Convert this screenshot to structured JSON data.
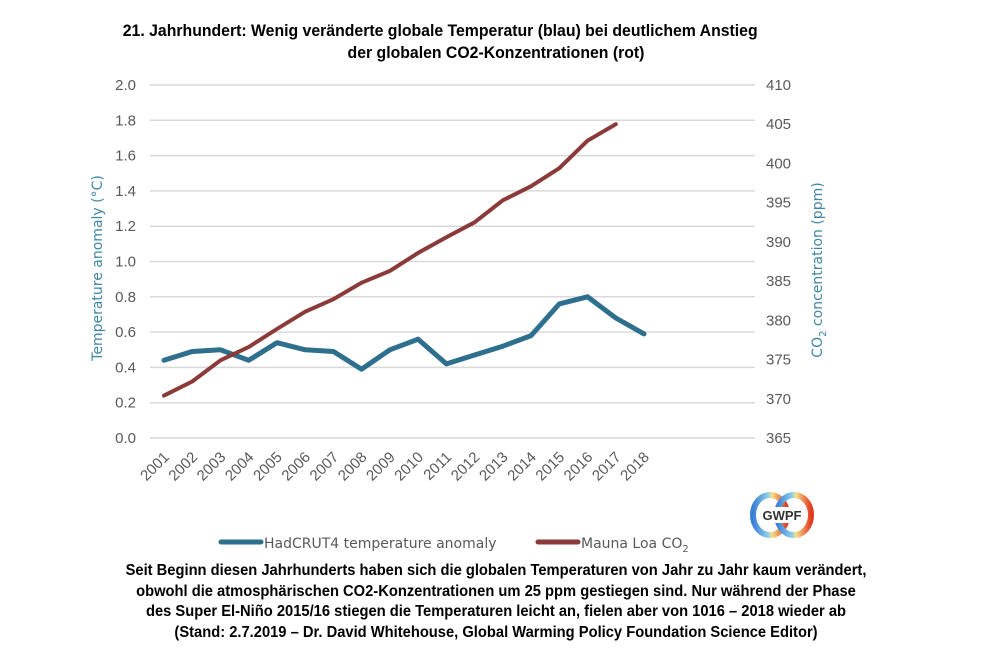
{
  "title": {
    "line1": "21. Jahrhundert:  Wenig veränderte globale Temperatur (blau) bei deutlichem Anstieg",
    "line2": "der globalen CO2-Konzentrationen  (rot)"
  },
  "caption": {
    "lines": [
      "Seit Beginn diesen Jahrhunderts  haben sich die globalen Temperaturen von Jahr zu Jahr kaum verändert,",
      "obwohl die atmosphärischen  CO2-Konzentrationen  um 25 ppm gestiegen sind. Nur während der Phase",
      "des Super El-Niño 2015/16 stiegen die Temperaturen leicht an, fielen aber  von 1016 – 2018 wieder ab",
      "(Stand: 2.7.2019 – Dr. David Whitehouse, Global Warming Policy Foundation Science Editor)"
    ]
  },
  "logo": {
    "text": "GWPF",
    "icon": "gwpf-logo-icon"
  },
  "chart_data": {
    "type": "line",
    "title": "21. Jahrhundert: Wenig veränderte globale Temperatur (blau) bei deutlichem Anstieg der globalen CO2-Konzentrationen (rot)",
    "xlabel": "",
    "ylabel": "Temperature anomaly (°C)",
    "y2label": "CO₂ concentration (ppm)",
    "ylim": [
      0.0,
      2.0
    ],
    "y2lim": [
      365,
      410
    ],
    "yticks": [
      "0.0",
      "0.2",
      "0.4",
      "0.6",
      "0.8",
      "1.0",
      "1.2",
      "1.4",
      "1.6",
      "1.8",
      "2.0"
    ],
    "y2ticks": [
      "365",
      "370",
      "375",
      "380",
      "385",
      "390",
      "395",
      "400",
      "405",
      "410"
    ],
    "categories": [
      "2001",
      "2002",
      "2003",
      "2004",
      "2005",
      "2006",
      "2007",
      "2008",
      "2009",
      "2010",
      "2011",
      "2012",
      "2013",
      "2014",
      "2015",
      "2016",
      "2017",
      "2018"
    ],
    "grid": true,
    "legend_position": "bottom",
    "series": [
      {
        "name": "HadCRUT4 temperature anomaly",
        "axis": "left",
        "color": "#2e6f8e",
        "values": [
          0.44,
          0.49,
          0.5,
          0.44,
          0.54,
          0.5,
          0.49,
          0.39,
          0.5,
          0.56,
          0.42,
          0.47,
          0.52,
          0.58,
          0.76,
          0.8,
          0.68,
          0.59
        ]
      },
      {
        "name": "Mauna Loa CO₂",
        "axis": "right",
        "color": "#8b3a3a",
        "values": [
          370.4,
          372.2,
          374.9,
          376.6,
          378.9,
          381.1,
          382.7,
          384.8,
          386.3,
          388.6,
          390.6,
          392.5,
          395.3,
          397.1,
          399.4,
          402.9,
          405.0,
          null
        ]
      }
    ]
  }
}
